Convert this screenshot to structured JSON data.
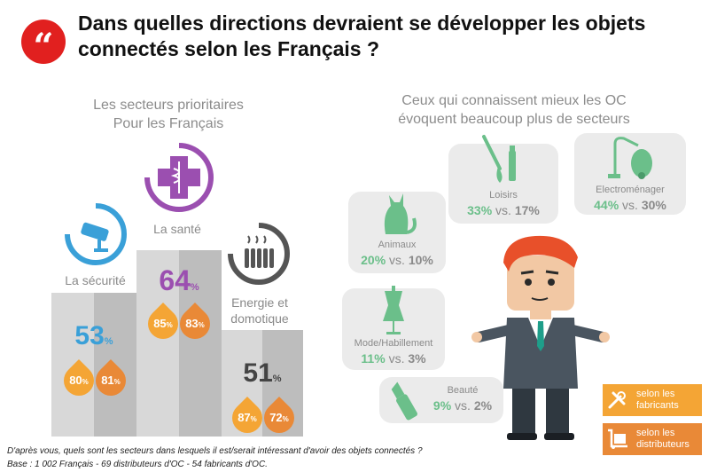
{
  "header": {
    "quote_icon": "quote-icon",
    "title": "Dans quelles directions devraient se développer les objets connectés selon les Français ?"
  },
  "left": {
    "title_line1": "Les secteurs prioritaires",
    "title_line2": "Pour les Français",
    "items": [
      {
        "label": "La sécurité",
        "value": "53",
        "sub1": "80",
        "sub2": "81",
        "icon": "security-camera-icon",
        "color": "#3aa0d8"
      },
      {
        "label": "La santé",
        "value": "64",
        "sub1": "85",
        "sub2": "83",
        "icon": "medical-cross-icon",
        "color": "#9b4fb0"
      },
      {
        "label_line1": "Energie et",
        "label_line2": "domotique",
        "value": "51",
        "sub1": "87",
        "sub2": "72",
        "icon": "radiator-icon",
        "color": "#555555"
      }
    ],
    "pct_sign": "%"
  },
  "right": {
    "title_line1": "Ceux qui connaissent mieux les OC",
    "title_line2": "évoquent beaucoup plus de secteurs",
    "vs": "vs.",
    "bubbles": [
      {
        "label": "Loisirs",
        "v1": "33%",
        "v2": "17%",
        "icon": "paintbrush-icon"
      },
      {
        "label": "Electroménager",
        "v1": "44%",
        "v2": "30%",
        "icon": "vacuum-icon"
      },
      {
        "label": "Animaux",
        "v1": "20%",
        "v2": "10%",
        "icon": "cat-icon"
      },
      {
        "label": "Mode/Habillement",
        "v1": "11%",
        "v2": "3%",
        "icon": "mannequin-icon"
      },
      {
        "label": "Beauté",
        "v1": "9%",
        "v2": "2%",
        "icon": "lipstick-icon"
      }
    ]
  },
  "legend": {
    "item1_line1": "selon les",
    "item1_line2": "fabricants",
    "item2_line1": "selon les",
    "item2_line2": "distributeurs",
    "color1": "#f4a535",
    "color2": "#e98937"
  },
  "footer": {
    "question": "D'après vous, quels sont les secteurs dans lesquels il est/serait intéressant d'avoir des objets connectés ?",
    "base": "Base : 1 002 Français - 69 distributeurs d'OC - 54 fabricants d'OC."
  }
}
